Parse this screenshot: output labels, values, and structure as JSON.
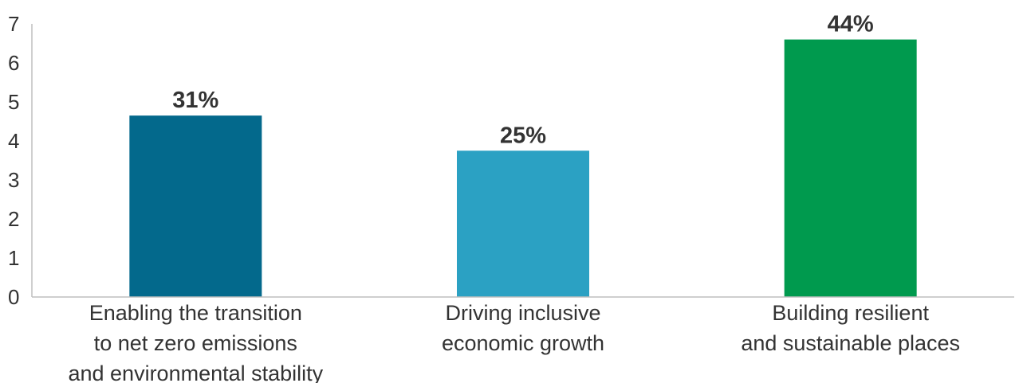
{
  "chart_data": {
    "type": "bar",
    "categories": [
      [
        "Enabling the transition",
        "to net zero emissions",
        "and environmental stability"
      ],
      [
        "Driving inclusive",
        "economic growth"
      ],
      [
        "Building resilient",
        "and sustainable places"
      ]
    ],
    "values": [
      4.65,
      3.75,
      6.6
    ],
    "data_labels": [
      "31%",
      "25%",
      "44%"
    ],
    "colors": [
      "#03698C",
      "#2BA1C3",
      "#009A4E"
    ],
    "ylim": [
      0,
      7
    ],
    "yticks": [
      0,
      1,
      2,
      3,
      4,
      5,
      6,
      7
    ],
    "title": "",
    "xlabel": "",
    "ylabel": "",
    "grid": false,
    "legend": "none"
  }
}
